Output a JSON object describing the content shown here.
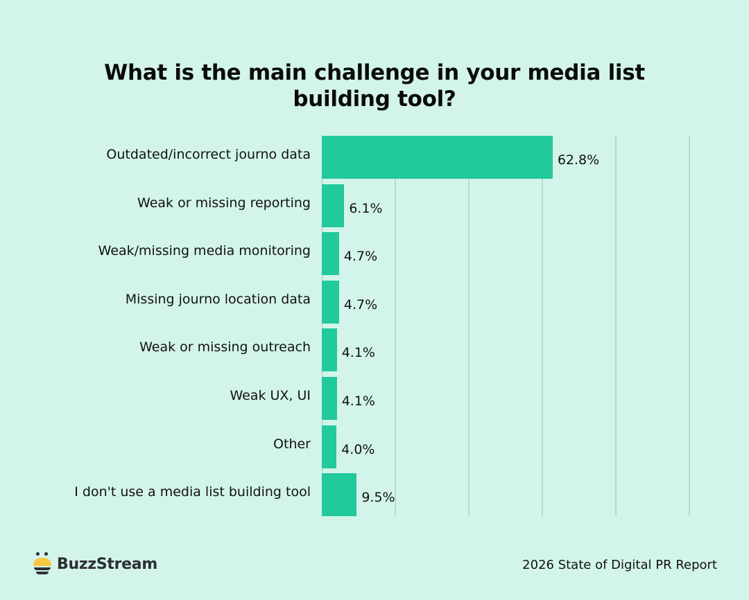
{
  "title": {
    "line1": "What is the main challenge in your media list",
    "line2": "building tool?"
  },
  "colors": {
    "background": "#d3f4ea",
    "bar": "#22c99a",
    "gridline": "#b7d9d0",
    "text": "#111111",
    "logo_yellow": "#f7c843",
    "logo_dark": "#2d2f33"
  },
  "chart_data": {
    "type": "bar",
    "orientation": "horizontal",
    "title": "What is the main challenge in your media list building tool?",
    "categories": [
      "Outdated/incorrect journo data",
      "Weak or missing reporting",
      "Weak/missing media monitoring",
      "Missing journo location data",
      "Weak or missing outreach",
      "Weak UX, UI",
      "Other",
      "I don't use a media list building tool"
    ],
    "values": [
      62.8,
      6.1,
      4.7,
      4.7,
      4.1,
      4.1,
      4.0,
      9.5
    ],
    "value_labels": [
      "62.8%",
      "6.1%",
      "4.7%",
      "4.7%",
      "4.1%",
      "4.1%",
      "4.0%",
      "9.5%"
    ],
    "xlabel": "",
    "ylabel": "",
    "xlim": [
      0,
      100
    ],
    "gridlines_at": [
      20,
      40,
      60,
      80,
      100
    ],
    "grid": true,
    "legend": null,
    "unit": "%"
  },
  "footer": {
    "brand": "BuzzStream",
    "logo_icon": "bee-icon",
    "report": "2026 State of Digital PR Report"
  }
}
